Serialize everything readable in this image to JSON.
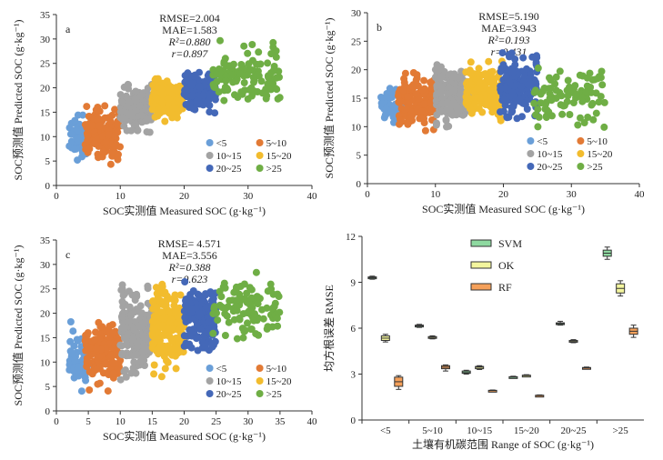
{
  "chart_data": [
    {
      "type": "scatter",
      "panel_label": "a",
      "xlabel": "SOC实测值 Measured SOC (g·kg⁻¹)",
      "ylabel": "SOC预测值 Predicted SOC (g·kg⁻¹)",
      "xlim": [
        0,
        40
      ],
      "ylim": [
        0,
        35
      ],
      "xticks": [
        0,
        10,
        20,
        30,
        40
      ],
      "yticks": [
        0,
        5,
        10,
        15,
        20,
        25,
        30,
        35
      ],
      "metrics": [
        "RMSE=2.004",
        "MAE=1.583",
        "R²=0.880",
        "r=0.897"
      ],
      "legend": [
        {
          "name": "<5",
          "color": "#6a9fd8"
        },
        {
          "name": "5~10",
          "color": "#e27a35"
        },
        {
          "name": "10~15",
          "color": "#a3a3a3"
        },
        {
          "name": "15~20",
          "color": "#f2bc2e"
        },
        {
          "name": "20~25",
          "color": "#4468b8"
        },
        {
          "name": ">25",
          "color": "#6fae45"
        }
      ],
      "series": [
        {
          "name": "<5",
          "color": "#6a9fd8",
          "x": [
            2,
            5
          ],
          "y": [
            3.5,
            16
          ],
          "n": 60
        },
        {
          "name": "5~10",
          "color": "#e27a35",
          "x": [
            4.5,
            10
          ],
          "y": [
            4,
            17
          ],
          "n": 140
        },
        {
          "name": "10~15",
          "color": "#a3a3a3",
          "x": [
            10,
            15
          ],
          "y": [
            10.5,
            21
          ],
          "n": 170
        },
        {
          "name": "15~20",
          "color": "#f2bc2e",
          "x": [
            15,
            20
          ],
          "y": [
            13,
            22
          ],
          "n": 170
        },
        {
          "name": "20~25",
          "color": "#4468b8",
          "x": [
            20,
            25
          ],
          "y": [
            14,
            24
          ],
          "n": 150
        },
        {
          "name": ">25",
          "color": "#6fae45",
          "x": [
            24.5,
            35
          ],
          "y": [
            15,
            30
          ],
          "n": 110
        }
      ]
    },
    {
      "type": "scatter",
      "panel_label": "b",
      "xlabel": "SOC实测值 Measured SOC (g·kg⁻¹)",
      "ylabel": "SOC预测值 Predicted SOC (g·kg⁻¹)",
      "xlim": [
        0,
        40
      ],
      "ylim": [
        0,
        30
      ],
      "xticks": [
        0,
        10,
        20,
        30,
        40
      ],
      "yticks": [
        0,
        5,
        10,
        15,
        20,
        25,
        30
      ],
      "metrics": [
        "RMSE=5.190",
        "MAE=3.943",
        "R²=0.193",
        "r=0.431"
      ],
      "legend": [
        {
          "name": "<5",
          "color": "#6a9fd8"
        },
        {
          "name": "5~10",
          "color": "#e27a35"
        },
        {
          "name": "10~15",
          "color": "#a3a3a3"
        },
        {
          "name": "15~20",
          "color": "#f2bc2e"
        },
        {
          "name": "20~25",
          "color": "#4468b8"
        },
        {
          "name": ">25",
          "color": "#6fae45"
        }
      ],
      "series": [
        {
          "name": "<5",
          "color": "#6a9fd8",
          "x": [
            2,
            5
          ],
          "y": [
            10,
            17
          ],
          "n": 60
        },
        {
          "name": "5~10",
          "color": "#e27a35",
          "x": [
            4.5,
            10
          ],
          "y": [
            9,
            20
          ],
          "n": 160
        },
        {
          "name": "10~15",
          "color": "#a3a3a3",
          "x": [
            10,
            15
          ],
          "y": [
            9,
            21.5
          ],
          "n": 180
        },
        {
          "name": "15~20",
          "color": "#f2bc2e",
          "x": [
            14.5,
            20
          ],
          "y": [
            11,
            21.5
          ],
          "n": 180
        },
        {
          "name": "20~25",
          "color": "#4468b8",
          "x": [
            19.5,
            25
          ],
          "y": [
            10,
            23.5
          ],
          "n": 170
        },
        {
          "name": ">25",
          "color": "#6fae45",
          "x": [
            24.5,
            35
          ],
          "y": [
            9.5,
            22
          ],
          "n": 90
        }
      ]
    },
    {
      "type": "scatter",
      "panel_label": "c",
      "xlabel": "SOC实测值 Measured SOC (g·kg⁻¹)",
      "ylabel": "SOC预测值 Predicted SOC (g·kg⁻¹)",
      "xlim": [
        0,
        40
      ],
      "ylim": [
        0,
        35
      ],
      "xticks": [
        0,
        5,
        10,
        15,
        20,
        25,
        30,
        35,
        40
      ],
      "yticks": [
        0,
        5,
        10,
        15,
        20,
        25,
        30,
        35
      ],
      "metrics": [
        "RMSE= 4.571",
        "MAE=3.556",
        "R²=0.388",
        "r=0.623"
      ],
      "legend": [
        {
          "name": "<5",
          "color": "#6a9fd8"
        },
        {
          "name": "5~10",
          "color": "#e27a35"
        },
        {
          "name": "10~15",
          "color": "#a3a3a3"
        },
        {
          "name": "15~20",
          "color": "#f2bc2e"
        },
        {
          "name": "20~25",
          "color": "#4468b8"
        },
        {
          "name": ">25",
          "color": "#6fae45"
        }
      ],
      "series": [
        {
          "name": "<5",
          "color": "#6a9fd8",
          "x": [
            2,
            5
          ],
          "y": [
            3.5,
            19
          ],
          "n": 60
        },
        {
          "name": "5~10",
          "color": "#e27a35",
          "x": [
            4.5,
            10
          ],
          "y": [
            4,
            20
          ],
          "n": 170
        },
        {
          "name": "10~15",
          "color": "#a3a3a3",
          "x": [
            10,
            15
          ],
          "y": [
            6,
            26
          ],
          "n": 190
        },
        {
          "name": "15~20",
          "color": "#f2bc2e",
          "x": [
            15,
            20
          ],
          "y": [
            7,
            27
          ],
          "n": 190
        },
        {
          "name": "20~25",
          "color": "#4468b8",
          "x": [
            20,
            25
          ],
          "y": [
            10,
            28
          ],
          "n": 170
        },
        {
          "name": ">25",
          "color": "#6fae45",
          "x": [
            24.5,
            35
          ],
          "y": [
            13.5,
            29
          ],
          "n": 100
        }
      ]
    },
    {
      "type": "box",
      "panel_label": "",
      "xlabel": "土壤有机碳范围 Range of SOC (g·kg⁻¹)",
      "ylabel": "均方根误差 RMSE",
      "ylim": [
        0,
        12
      ],
      "yticks": [
        0,
        3,
        6,
        9,
        12
      ],
      "categories": [
        "<5",
        "5~10",
        "10~15",
        "15~20",
        "20~25",
        ">25"
      ],
      "legend": [
        {
          "name": "SVM",
          "color": "#8ed9a0"
        },
        {
          "name": "OK",
          "color": "#f3f59e"
        },
        {
          "name": "RF",
          "color": "#f5a05a"
        }
      ],
      "boxes": {
        "SVM": [
          [
            9.2,
            9.25,
            9.3,
            9.35,
            9.4
          ],
          [
            6.05,
            6.1,
            6.15,
            6.2,
            6.25
          ],
          [
            3.0,
            3.05,
            3.1,
            3.2,
            3.25
          ],
          [
            2.75,
            2.78,
            2.8,
            2.83,
            2.86
          ],
          [
            6.2,
            6.25,
            6.3,
            6.35,
            6.45
          ],
          [
            10.5,
            10.7,
            10.9,
            11.1,
            11.3
          ]
        ],
        "OK": [
          [
            5.1,
            5.2,
            5.35,
            5.5,
            5.6
          ],
          [
            5.3,
            5.35,
            5.4,
            5.45,
            5.5
          ],
          [
            3.3,
            3.35,
            3.45,
            3.5,
            3.55
          ],
          [
            2.85,
            2.88,
            2.9,
            2.93,
            2.96
          ],
          [
            5.05,
            5.1,
            5.15,
            5.2,
            5.25
          ],
          [
            8.1,
            8.3,
            8.6,
            8.9,
            9.1
          ]
        ],
        "RF": [
          [
            2.0,
            2.2,
            2.5,
            2.8,
            2.9
          ],
          [
            3.2,
            3.35,
            3.45,
            3.55,
            3.6
          ],
          [
            1.88,
            1.9,
            1.92,
            1.94,
            1.96
          ],
          [
            1.55,
            1.57,
            1.6,
            1.62,
            1.64
          ],
          [
            3.35,
            3.38,
            3.4,
            3.43,
            3.46
          ],
          [
            5.4,
            5.6,
            5.8,
            6.0,
            6.2
          ]
        ]
      }
    }
  ]
}
